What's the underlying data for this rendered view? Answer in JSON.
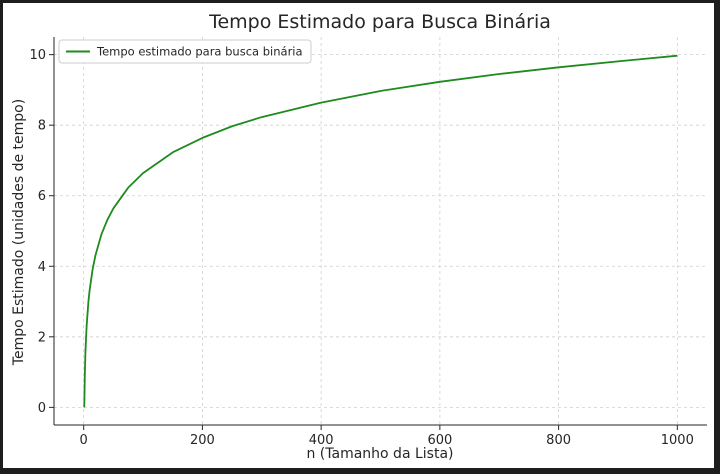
{
  "chart_data": {
    "type": "line",
    "title": "Tempo Estimado para Busca Binária",
    "xlabel": "n (Tamanho da Lista)",
    "ylabel": "Tempo Estimado (unidades de tempo)",
    "xlim": [
      -50,
      1050
    ],
    "ylim": [
      -0.5,
      10.5
    ],
    "xticks": [
      0,
      200,
      400,
      600,
      800,
      1000
    ],
    "yticks": [
      0,
      2,
      4,
      6,
      8,
      10
    ],
    "grid": true,
    "legend_position": "top-left",
    "series": [
      {
        "name": "Tempo estimado para busca binária",
        "color": "#1f8a1f",
        "x": [
          1,
          2,
          3,
          5,
          8,
          10,
          15,
          20,
          30,
          40,
          50,
          75,
          100,
          150,
          200,
          250,
          300,
          400,
          500,
          600,
          700,
          800,
          900,
          1000
        ],
        "y": [
          0,
          1,
          1.58,
          2.32,
          3,
          3.32,
          3.91,
          4.32,
          4.91,
          5.32,
          5.64,
          6.23,
          6.64,
          7.23,
          7.64,
          7.97,
          8.23,
          8.64,
          8.97,
          9.23,
          9.45,
          9.64,
          9.81,
          9.97
        ]
      }
    ]
  }
}
